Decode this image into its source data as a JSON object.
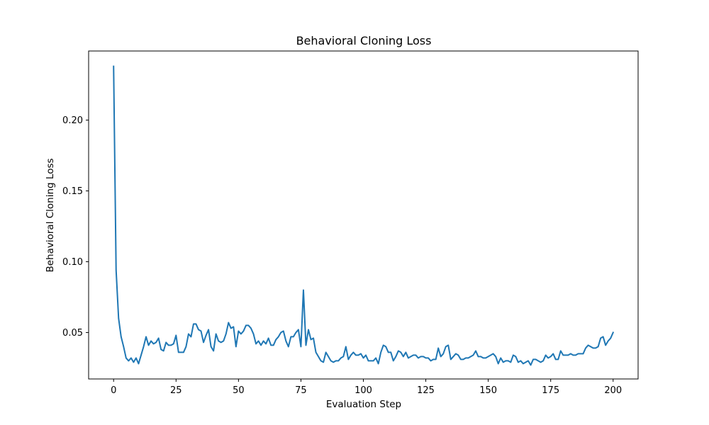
{
  "chart_data": {
    "type": "line",
    "title": "Behavioral Cloning Loss",
    "xlabel": "Evaluation Step",
    "ylabel": "Behavioral Cloning Loss",
    "xlim": [
      -10,
      210
    ],
    "ylim": [
      0.0172,
      0.2488
    ],
    "xticks": [
      0,
      25,
      50,
      75,
      100,
      125,
      150,
      175,
      200
    ],
    "yticks": [
      0.05,
      0.1,
      0.15,
      0.2
    ],
    "ytick_labels": [
      "0.05",
      "0.10",
      "0.15",
      "0.20"
    ],
    "grid": false,
    "legend": "none",
    "series": [
      {
        "color": "#1f77b4",
        "x": [
          0,
          1,
          2,
          3,
          4,
          5,
          6,
          7,
          8,
          9,
          10,
          11,
          12,
          13,
          14,
          15,
          16,
          17,
          18,
          19,
          20,
          21,
          22,
          23,
          24,
          25,
          26,
          27,
          28,
          29,
          30,
          31,
          32,
          33,
          34,
          35,
          36,
          37,
          38,
          39,
          40,
          41,
          42,
          43,
          44,
          45,
          46,
          47,
          48,
          49,
          50,
          51,
          52,
          53,
          54,
          55,
          56,
          57,
          58,
          59,
          60,
          61,
          62,
          63,
          64,
          65,
          66,
          67,
          68,
          69,
          70,
          71,
          72,
          73,
          74,
          75,
          76,
          77,
          78,
          79,
          80,
          81,
          82,
          83,
          84,
          85,
          86,
          87,
          88,
          89,
          90,
          91,
          92,
          93,
          94,
          95,
          96,
          97,
          98,
          99,
          100,
          101,
          102,
          103,
          104,
          105,
          106,
          107,
          108,
          109,
          110,
          111,
          112,
          113,
          114,
          115,
          116,
          117,
          118,
          119,
          120,
          121,
          122,
          123,
          124,
          125,
          126,
          127,
          128,
          129,
          130,
          131,
          132,
          133,
          134,
          135,
          136,
          137,
          138,
          139,
          140,
          141,
          142,
          143,
          144,
          145,
          146,
          147,
          148,
          149,
          150,
          151,
          152,
          153,
          154,
          155,
          156,
          157,
          158,
          159,
          160,
          161,
          162,
          163,
          164,
          165,
          166,
          167,
          168,
          169,
          170,
          171,
          172,
          173,
          174,
          175,
          176,
          177,
          178,
          179,
          180,
          181,
          182,
          183,
          184,
          185,
          186,
          187,
          188,
          189,
          190,
          191,
          192,
          193,
          194,
          195,
          196,
          197,
          198,
          199,
          200
        ],
        "values": [
          0.238,
          0.094,
          0.06,
          0.047,
          0.04,
          0.032,
          0.03,
          0.032,
          0.029,
          0.032,
          0.028,
          0.034,
          0.04,
          0.047,
          0.041,
          0.044,
          0.042,
          0.043,
          0.046,
          0.038,
          0.037,
          0.043,
          0.041,
          0.041,
          0.042,
          0.048,
          0.036,
          0.036,
          0.036,
          0.04,
          0.049,
          0.047,
          0.056,
          0.056,
          0.052,
          0.051,
          0.043,
          0.048,
          0.052,
          0.04,
          0.037,
          0.049,
          0.044,
          0.043,
          0.044,
          0.049,
          0.057,
          0.053,
          0.054,
          0.04,
          0.051,
          0.049,
          0.051,
          0.055,
          0.055,
          0.053,
          0.049,
          0.042,
          0.044,
          0.041,
          0.044,
          0.042,
          0.046,
          0.041,
          0.041,
          0.045,
          0.047,
          0.05,
          0.051,
          0.044,
          0.04,
          0.047,
          0.047,
          0.05,
          0.052,
          0.04,
          0.08,
          0.041,
          0.052,
          0.045,
          0.046,
          0.036,
          0.033,
          0.03,
          0.029,
          0.036,
          0.033,
          0.03,
          0.029,
          0.03,
          0.03,
          0.032,
          0.033,
          0.04,
          0.031,
          0.034,
          0.036,
          0.034,
          0.034,
          0.035,
          0.032,
          0.034,
          0.03,
          0.03,
          0.03,
          0.032,
          0.028,
          0.036,
          0.041,
          0.04,
          0.036,
          0.036,
          0.03,
          0.033,
          0.037,
          0.036,
          0.033,
          0.036,
          0.032,
          0.033,
          0.034,
          0.034,
          0.032,
          0.033,
          0.033,
          0.032,
          0.032,
          0.03,
          0.031,
          0.031,
          0.039,
          0.033,
          0.035,
          0.04,
          0.041,
          0.031,
          0.033,
          0.035,
          0.034,
          0.031,
          0.031,
          0.032,
          0.032,
          0.033,
          0.034,
          0.037,
          0.033,
          0.033,
          0.032,
          0.032,
          0.033,
          0.034,
          0.035,
          0.033,
          0.028,
          0.032,
          0.029,
          0.03,
          0.03,
          0.029,
          0.034,
          0.033,
          0.029,
          0.03,
          0.028,
          0.029,
          0.03,
          0.027,
          0.031,
          0.031,
          0.03,
          0.029,
          0.03,
          0.034,
          0.032,
          0.033,
          0.035,
          0.031,
          0.031,
          0.037,
          0.034,
          0.034,
          0.034,
          0.035,
          0.034,
          0.034,
          0.035,
          0.035,
          0.035,
          0.039,
          0.041,
          0.04,
          0.039,
          0.039,
          0.04,
          0.046,
          0.047,
          0.041,
          0.044,
          0.046,
          0.05
        ]
      }
    ]
  }
}
